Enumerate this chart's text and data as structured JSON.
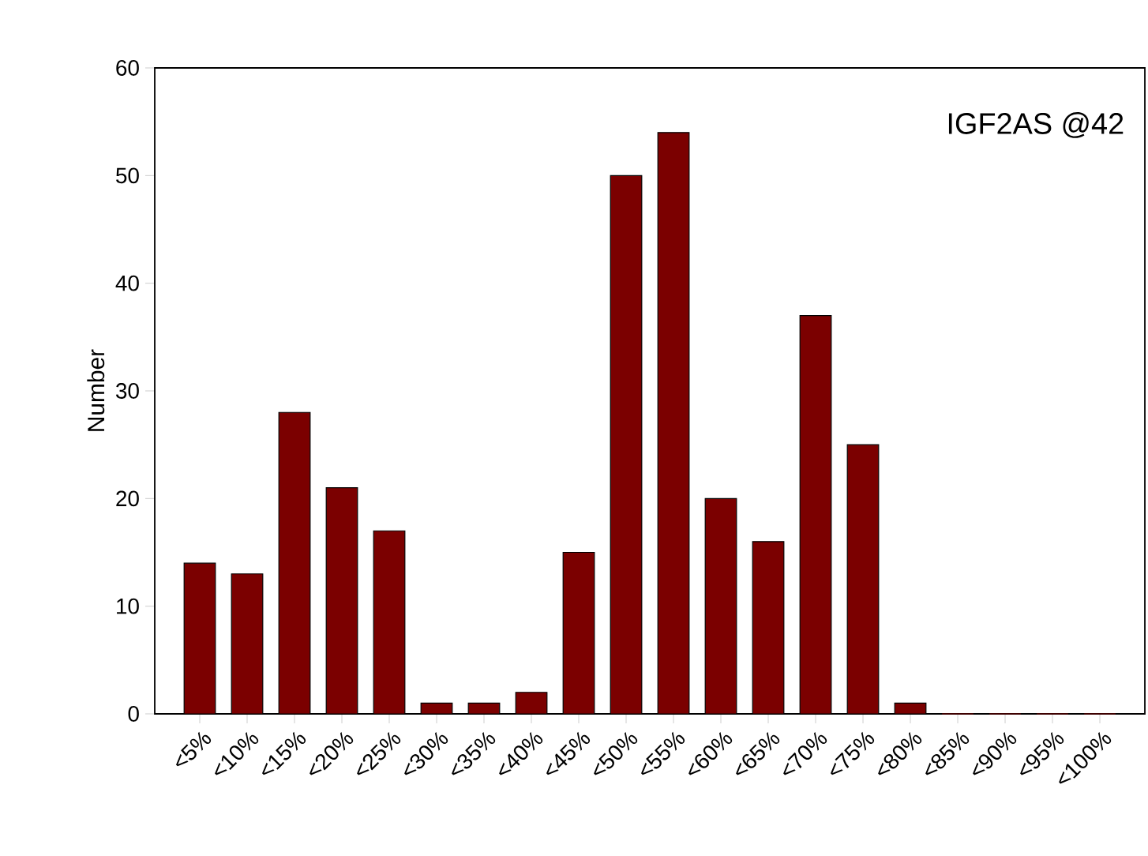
{
  "chart_data": {
    "type": "bar",
    "ylabel": "Number",
    "categories": [
      "<5%",
      "<10%",
      "<15%",
      "<20%",
      "<25%",
      "<30%",
      "<35%",
      "<40%",
      "<45%",
      "<50%",
      "<55%",
      "<60%",
      "<65%",
      "<70%",
      "<75%",
      "<80%",
      "<85%",
      "<90%",
      "<95%",
      "<100%"
    ],
    "values": [
      14,
      13,
      28,
      21,
      17,
      1,
      1,
      2,
      15,
      50,
      54,
      20,
      16,
      37,
      25,
      1,
      0,
      0,
      0,
      0
    ],
    "color": "#7b0000",
    "ylim": [
      0,
      60
    ],
    "yticks": [
      0,
      10,
      20,
      30,
      40,
      50,
      60
    ],
    "annotations": [
      "IGF2AS @42"
    ],
    "grid": false
  }
}
